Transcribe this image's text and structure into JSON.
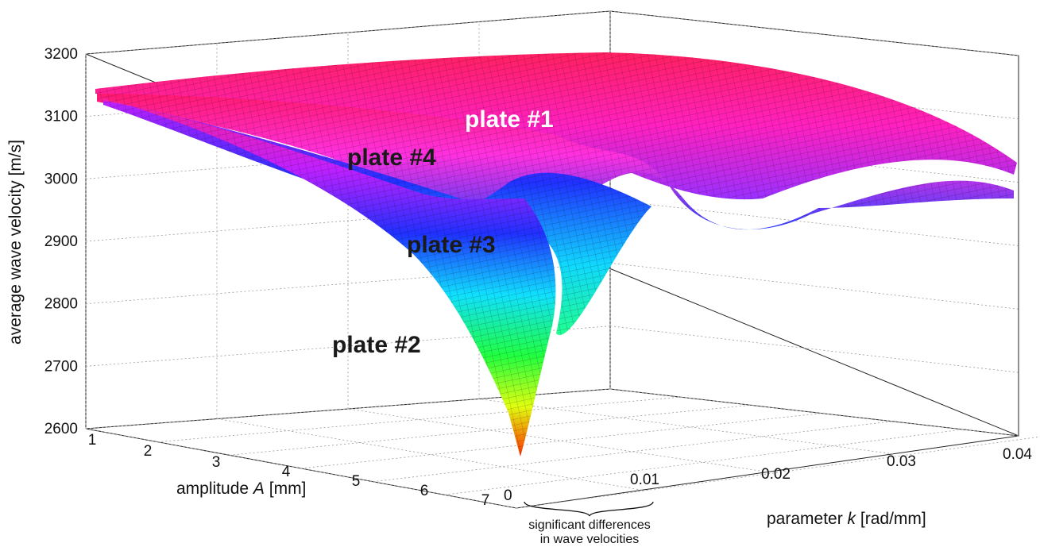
{
  "chart_data": {
    "type": "surface3d",
    "zlabel": "average wave velocity [m/s]",
    "xlabel_pre": "amplitude ",
    "xlabel_var": "A",
    "xlabel_post": " [mm]",
    "ylabel_pre": "parameter ",
    "ylabel_var": "k",
    "ylabel_post": " [rad/mm]",
    "z_ticks": [
      "3200",
      "3100",
      "3000",
      "2900",
      "2800",
      "2700",
      "2600"
    ],
    "x_ticks": [
      "1",
      "2",
      "3",
      "4",
      "5",
      "6",
      "7"
    ],
    "y_ticks": [
      "0",
      "0.01",
      "0.02",
      "0.03",
      "0.04"
    ],
    "x_range": [
      1,
      7
    ],
    "y_range": [
      0,
      0.04
    ],
    "z_range": [
      2600,
      3200
    ],
    "grid": true,
    "series": [
      {
        "name": "plate #1",
        "min_velocity": 2980,
        "plateau_velocity": 3140
      },
      {
        "name": "plate #4",
        "min_velocity": 2950,
        "plateau_velocity": 3130
      },
      {
        "name": "plate #3",
        "min_velocity": 2750,
        "plateau_velocity": 3120
      },
      {
        "name": "plate #2",
        "min_velocity": 2600,
        "plateau_velocity": 3120
      }
    ],
    "annotation": {
      "line1": "significant differences",
      "line2": "in wave velocities"
    }
  }
}
